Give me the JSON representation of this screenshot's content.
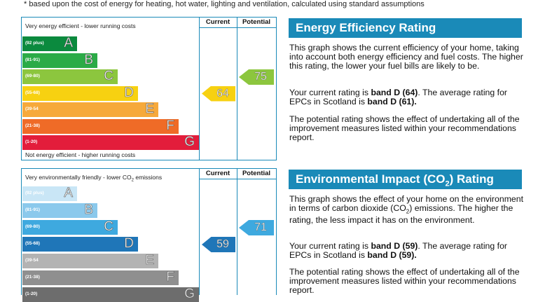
{
  "note": "* based upon the cost of energy for heating, hot water, lighting and ventilation, calculated using standard assumptions",
  "energy_chart": {
    "header_current": "Current",
    "header_potential": "Potential",
    "top_caption": "Very energy efficient - lower running costs",
    "bottom_caption": "Not energy efficient - higher running costs",
    "bands": [
      {
        "range": "(92 plus)",
        "letter": "A",
        "color": "#0b8a3e"
      },
      {
        "range": "(81-91)",
        "letter": "B",
        "color": "#2bab47"
      },
      {
        "range": "(69-80)",
        "letter": "C",
        "color": "#8cc63e"
      },
      {
        "range": "(55-68)",
        "letter": "D",
        "color": "#f7d111"
      },
      {
        "range": "(39-54",
        "letter": "E",
        "color": "#f6a93b"
      },
      {
        "range": "(21-38)",
        "letter": "F",
        "color": "#ef6b27"
      },
      {
        "range": "(1-20)",
        "letter": "G",
        "color": "#e31d3b"
      }
    ],
    "current": {
      "value": "64",
      "band": "D",
      "color": "#f7d111"
    },
    "potential": {
      "value": "75",
      "band": "C",
      "color": "#8cc63e"
    }
  },
  "environment_chart": {
    "header_current": "Current",
    "header_potential": "Potential",
    "top_caption_pre": "Very environmentally friendly - lower CO",
    "top_caption_sub": "2",
    "top_caption_post": " emissions",
    "bands": [
      {
        "range": "(92 plus)",
        "letter": "A",
        "color": "#c9e6f6"
      },
      {
        "range": "(81-91)",
        "letter": "B",
        "color": "#8bc9ec"
      },
      {
        "range": "(69-80)",
        "letter": "C",
        "color": "#3ea9df"
      },
      {
        "range": "(55-68)",
        "letter": "D",
        "color": "#1f76b8"
      },
      {
        "range": "(39-54",
        "letter": "E",
        "color": "#b3b3b3"
      },
      {
        "range": "(21-38)",
        "letter": "F",
        "color": "#8f8f8f"
      },
      {
        "range": "(1-20)",
        "letter": "G",
        "color": "#6d6d6d"
      }
    ],
    "current": {
      "value": "59",
      "band": "D",
      "color": "#1f76b8"
    },
    "potential": {
      "value": "71",
      "band": "C",
      "color": "#3ea9df"
    }
  },
  "energy_panel": {
    "title": "Energy Efficiency Rating",
    "p1": "This graph shows the current efficiency of your home, taking into account both energy efficiency and fuel costs. The higher this rating, the lower your fuel bills are likely to be.",
    "p2_a": "Your current rating is ",
    "p2_b": "band D (64)",
    "p2_c": ". The average rating for EPCs in Scotland is ",
    "p2_d": "band D (61).",
    "p3": "The potential rating shows the effect of undertaking all of the improvement measures listed within your recommendations report."
  },
  "environment_panel": {
    "title_pre": "Environmental Impact (CO",
    "title_sub": "2",
    "title_post": ") Rating",
    "p1_pre": "This graph shows the effect of your home on the environment in terms of carbon dioxide (CO",
    "p1_sub": "2",
    "p1_post": ") emissions. The higher the rating, the less impact it has on the environment.",
    "p2_a": "Your current rating is ",
    "p2_b": "band D (59)",
    "p2_c": ". The average rating for EPCs in Scotland is ",
    "p2_d": "band D (59).",
    "p3": "The potential rating shows the effect of undertaking all of the improvement measures listed within your recommendations report."
  }
}
